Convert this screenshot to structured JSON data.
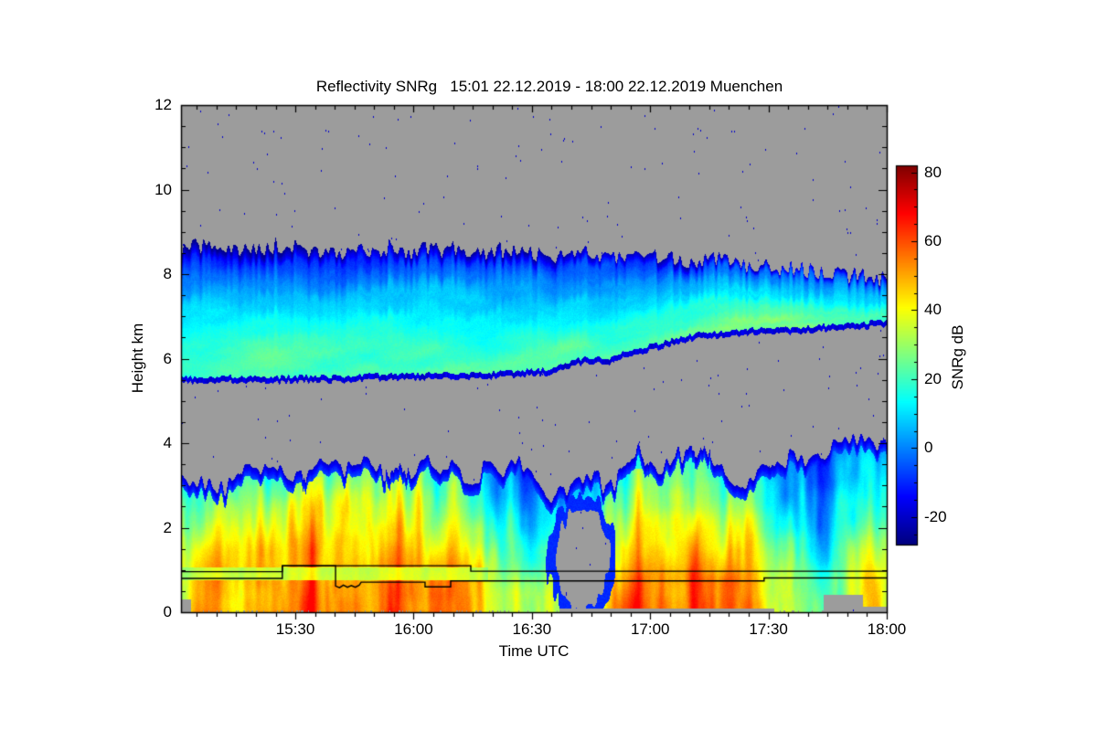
{
  "chart_data": {
    "type": "heatmap",
    "title": "Reflectivity SNRg   15:01 22.12.2019 - 18:00 22.12.2019 Muenchen",
    "station": "Muenchen",
    "time_span": {
      "start": "15:01 22.12.2019",
      "end": "18:00 22.12.2019"
    },
    "xlabel": "Time UTC",
    "ylabel": "Height km",
    "colorbar_label": "SNRg dB",
    "x_axis": {
      "start_label": "15:01",
      "end_label": "18:00",
      "duration_min": 179,
      "major_ticks": [
        {
          "t": 29,
          "label": "15:30"
        },
        {
          "t": 59,
          "label": "16:00"
        },
        {
          "t": 89,
          "label": "16:30"
        },
        {
          "t": 119,
          "label": "17:00"
        },
        {
          "t": 149,
          "label": "17:30"
        },
        {
          "t": 179,
          "label": "18:00"
        }
      ],
      "minor_tick_every_min": 5,
      "first_minor_t": 4
    },
    "y_axis": {
      "min": 0,
      "max": 12,
      "major_ticks": [
        0,
        2,
        4,
        6,
        8,
        10,
        12
      ],
      "minor_step": 0.5
    },
    "colorbar": {
      "vmin": -28,
      "vmax": 82,
      "major_ticks": [
        {
          "v": 80,
          "label": "80"
        },
        {
          "v": 60,
          "label": "60"
        },
        {
          "v": 40,
          "label": "40"
        },
        {
          "v": 20,
          "label": "20"
        },
        {
          "v": 0,
          "label": "0"
        },
        {
          "v": -20,
          "label": "-20"
        }
      ],
      "minor_step": 5,
      "colormap": "jet"
    },
    "no_data_color": "#9c9c9c",
    "speckle_color_db": -20,
    "layers": {
      "upper_cloud": {
        "top_km": [
          [
            0,
            8.55
          ],
          [
            8,
            8.7
          ],
          [
            15,
            8.55
          ],
          [
            22,
            8.65
          ],
          [
            30,
            8.6
          ],
          [
            38,
            8.5
          ],
          [
            45,
            8.55
          ],
          [
            52,
            8.6
          ],
          [
            60,
            8.55
          ],
          [
            68,
            8.6
          ],
          [
            75,
            8.5
          ],
          [
            82,
            8.55
          ],
          [
            88,
            8.5
          ],
          [
            95,
            8.45
          ],
          [
            102,
            8.5
          ],
          [
            108,
            8.4
          ],
          [
            115,
            8.45
          ],
          [
            122,
            8.35
          ],
          [
            128,
            8.3
          ],
          [
            135,
            8.35
          ],
          [
            142,
            8.25
          ],
          [
            148,
            8.2
          ],
          [
            155,
            8.15
          ],
          [
            162,
            8.05
          ],
          [
            168,
            8.0
          ],
          [
            173,
            7.95
          ],
          [
            179,
            7.85
          ]
        ],
        "base_km": [
          [
            0,
            5.42
          ],
          [
            10,
            5.45
          ],
          [
            20,
            5.42
          ],
          [
            30,
            5.45
          ],
          [
            40,
            5.45
          ],
          [
            50,
            5.5
          ],
          [
            60,
            5.5
          ],
          [
            70,
            5.52
          ],
          [
            80,
            5.55
          ],
          [
            90,
            5.6
          ],
          [
            95,
            5.65
          ],
          [
            100,
            5.85
          ],
          [
            105,
            5.9
          ],
          [
            108,
            5.85
          ],
          [
            112,
            6.0
          ],
          [
            118,
            6.15
          ],
          [
            124,
            6.3
          ],
          [
            130,
            6.45
          ],
          [
            136,
            6.5
          ],
          [
            142,
            6.55
          ],
          [
            148,
            6.6
          ],
          [
            155,
            6.6
          ],
          [
            162,
            6.65
          ],
          [
            168,
            6.7
          ],
          [
            174,
            6.72
          ],
          [
            179,
            6.78
          ]
        ],
        "value_profile_db": [
          [
            0,
            22
          ],
          [
            0.25,
            18
          ],
          [
            0.5,
            9
          ],
          [
            0.75,
            0
          ],
          [
            0.9,
            -10
          ],
          [
            1,
            -19
          ]
        ],
        "col_mod_db": [
          [
            0,
            0
          ],
          [
            20,
            2
          ],
          [
            40,
            1
          ],
          [
            60,
            2
          ],
          [
            80,
            0
          ],
          [
            95,
            1
          ],
          [
            110,
            2
          ],
          [
            125,
            3
          ],
          [
            140,
            4
          ],
          [
            155,
            5
          ],
          [
            168,
            4
          ],
          [
            179,
            3
          ]
        ]
      },
      "lower_precip": {
        "top_km": [
          [
            0,
            3.0
          ],
          [
            5,
            3.2
          ],
          [
            10,
            3.0
          ],
          [
            15,
            3.3
          ],
          [
            20,
            3.2
          ],
          [
            25,
            3.4
          ],
          [
            30,
            3.3
          ],
          [
            35,
            3.5
          ],
          [
            40,
            3.4
          ],
          [
            45,
            3.6
          ],
          [
            50,
            3.4
          ],
          [
            55,
            3.5
          ],
          [
            60,
            3.6
          ],
          [
            65,
            3.4
          ],
          [
            70,
            3.3
          ],
          [
            75,
            3.1
          ],
          [
            80,
            3.4
          ],
          [
            85,
            3.6
          ],
          [
            88,
            3.3
          ],
          [
            92,
            2.9
          ],
          [
            95,
            2.7
          ],
          [
            100,
            3.0
          ],
          [
            105,
            3.3
          ],
          [
            108,
            3.0
          ],
          [
            112,
            3.3
          ],
          [
            115,
            3.7
          ],
          [
            118,
            3.4
          ],
          [
            122,
            3.2
          ],
          [
            126,
            3.6
          ],
          [
            130,
            3.8
          ],
          [
            134,
            3.5
          ],
          [
            138,
            3.2
          ],
          [
            142,
            3.0
          ],
          [
            146,
            3.3
          ],
          [
            150,
            3.6
          ],
          [
            154,
            3.4
          ],
          [
            158,
            3.7
          ],
          [
            162,
            3.9
          ],
          [
            166,
            4.1
          ],
          [
            170,
            3.9
          ],
          [
            174,
            4.1
          ],
          [
            179,
            4.15
          ]
        ],
        "value_by_height_db": [
          [
            0,
            46
          ],
          [
            0.8,
            44
          ],
          [
            1.5,
            36
          ],
          [
            2.5,
            24
          ],
          [
            3.2,
            15
          ],
          [
            4.3,
            8
          ]
        ],
        "col_mod_db": [
          [
            0,
            0
          ],
          [
            8,
            2
          ],
          [
            14,
            -2
          ],
          [
            20,
            3
          ],
          [
            28,
            5
          ],
          [
            33,
            7
          ],
          [
            40,
            7
          ],
          [
            45,
            9
          ],
          [
            50,
            6
          ],
          [
            55,
            9
          ],
          [
            60,
            7
          ],
          [
            65,
            4
          ],
          [
            70,
            3
          ],
          [
            76,
            4
          ],
          [
            81,
            -8
          ],
          [
            86,
            -13
          ],
          [
            91,
            -15
          ],
          [
            96,
            -10
          ],
          [
            102,
            -7
          ],
          [
            106,
            -4
          ],
          [
            110,
            3
          ],
          [
            115,
            6
          ],
          [
            120,
            5
          ],
          [
            124,
            7
          ],
          [
            128,
            8
          ],
          [
            133,
            7
          ],
          [
            138,
            7
          ],
          [
            142,
            8
          ],
          [
            146,
            5
          ],
          [
            151,
            -4
          ],
          [
            155,
            -9
          ],
          [
            159,
            -12
          ],
          [
            163,
            -14
          ],
          [
            167,
            -11
          ],
          [
            170,
            -2
          ],
          [
            173,
            3
          ],
          [
            176,
            -2
          ],
          [
            179,
            -7
          ]
        ],
        "melting_band": {
          "h0": 0.75,
          "h1": 1.05,
          "t_max": 78,
          "value_db": 24
        },
        "updraft_plumes": [
          {
            "t": 33,
            "h_km": 3.2
          },
          {
            "t": 55,
            "h_km": 3.3
          },
          {
            "t": 116,
            "h_km": 3.4
          },
          {
            "t": 131,
            "h_km": 3.8
          }
        ],
        "hole": {
          "t_center": 101.8,
          "h_center_km": 1.25,
          "t_radius_min": 6.8,
          "h_radius_km": 1.2
        },
        "bottom_gray_gaps": [
          {
            "t0": 96,
            "t1": 150.5,
            "h_km": 0.09
          },
          {
            "t0": 163,
            "t1": 173,
            "h_km": 0.42
          },
          {
            "t0": 173,
            "t1": 179,
            "h_km": 0.12
          },
          {
            "t0": 0,
            "t1": 2.5,
            "h_km": 0.3
          }
        ]
      }
    },
    "overlay_lines": {
      "color": "#000000",
      "line1_t_km": [
        [
          0,
          0.96
        ],
        [
          25.7,
          0.96
        ],
        [
          25.7,
          1.1
        ],
        [
          73.5,
          1.1
        ],
        [
          73.5,
          0.97
        ],
        [
          179,
          0.97
        ]
      ],
      "line2_t_km": [
        [
          0,
          0.8
        ],
        [
          25.7,
          0.8
        ],
        [
          25.7,
          1.1
        ],
        [
          39.2,
          1.1
        ],
        [
          39.2,
          0.62
        ],
        [
          40.2,
          0.58
        ],
        [
          41.2,
          0.64
        ],
        [
          42.2,
          0.59
        ],
        [
          43.2,
          0.63
        ],
        [
          44.2,
          0.59
        ],
        [
          45.2,
          0.64
        ],
        [
          45.7,
          0.71
        ],
        [
          61.9,
          0.71
        ],
        [
          61.9,
          0.6
        ],
        [
          68.4,
          0.6
        ],
        [
          68.4,
          0.74
        ],
        [
          147.9,
          0.74
        ],
        [
          147.9,
          0.81
        ],
        [
          179,
          0.81
        ]
      ]
    }
  }
}
